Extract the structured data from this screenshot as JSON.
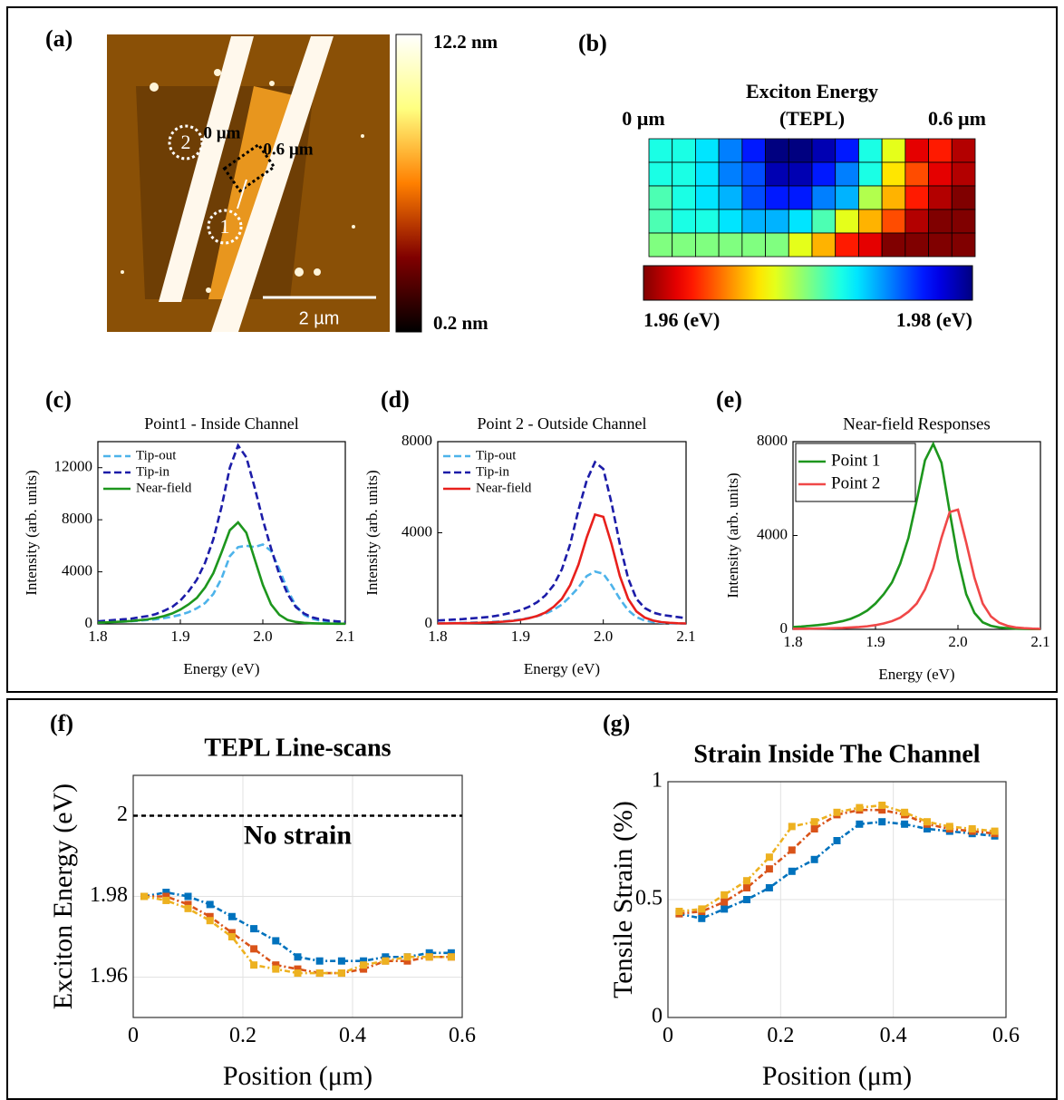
{
  "chart_data": [
    {
      "type": "image",
      "panel": "(a)",
      "colormap": "afmhot",
      "clim": [
        0.2,
        12.2
      ],
      "colorbar_ticks": [
        {
          "value": 12.2,
          "label": "12.2 nm"
        },
        {
          "value": 0.2,
          "label": "0.2 nm"
        }
      ],
      "scale_bar": "2 µm",
      "annotations": [
        "0 µm",
        "0.6 µm",
        "1",
        "2"
      ]
    },
    {
      "type": "heatmap",
      "panel": "(b)",
      "title": "Exciton Energy",
      "subtitle": "(TEPL)",
      "colormap": "jet_r",
      "xlim": [
        0,
        0.6
      ],
      "xticks": [
        {
          "value": 0,
          "label": "0 µm"
        },
        {
          "value": 0.6,
          "label": "0.6 µm"
        }
      ],
      "clim": [
        1.96,
        1.98
      ],
      "colorbar_ticks": [
        {
          "value": 1.96,
          "label": "1.96 (eV)"
        },
        {
          "value": 1.98,
          "label": "1.98 (eV)"
        }
      ],
      "values": [
        [
          1.972,
          1.972,
          1.973,
          1.975,
          1.977,
          1.98,
          1.98,
          1.979,
          1.977,
          1.972,
          1.968,
          1.962,
          1.963,
          1.961
        ],
        [
          1.972,
          1.972,
          1.973,
          1.975,
          1.976,
          1.979,
          1.979,
          1.977,
          1.975,
          1.972,
          1.967,
          1.964,
          1.962,
          1.961
        ],
        [
          1.971,
          1.972,
          1.973,
          1.974,
          1.976,
          1.977,
          1.977,
          1.975,
          1.974,
          1.969,
          1.966,
          1.963,
          1.961,
          1.96
        ],
        [
          1.971,
          1.972,
          1.972,
          1.973,
          1.974,
          1.974,
          1.973,
          1.971,
          1.968,
          1.966,
          1.964,
          1.961,
          1.96,
          1.96
        ],
        [
          1.97,
          1.97,
          1.97,
          1.97,
          1.97,
          1.97,
          1.968,
          1.966,
          1.963,
          1.962,
          1.96,
          1.96,
          1.96,
          1.96
        ]
      ]
    },
    {
      "type": "line",
      "panel": "(c)",
      "title": "Point1 - Inside Channel",
      "x_label": "Energy (eV)",
      "y_label": "Intensity (arb. units)",
      "xlim": [
        1.8,
        2.1
      ],
      "xticks": [
        1.8,
        1.9,
        {
          "value": 2,
          "label": "2.0"
        },
        2.1
      ],
      "ylim": [
        0,
        14000
      ],
      "yticks": [
        0,
        4000,
        8000,
        12000
      ],
      "grid": false,
      "legend": "upper left",
      "x": [
        1.8,
        1.81,
        1.82,
        1.83,
        1.84,
        1.85,
        1.86,
        1.87,
        1.88,
        1.89,
        1.9,
        1.91,
        1.92,
        1.93,
        1.94,
        1.95,
        1.96,
        1.97,
        1.98,
        1.99,
        2.0,
        2.01,
        2.02,
        2.03,
        2.04,
        2.05,
        2.06,
        2.07,
        2.08,
        2.09,
        2.1
      ],
      "series": [
        {
          "name": "Tip-out",
          "color": "#4db3ea",
          "style": "dashed",
          "values": [
            100,
            120,
            150,
            180,
            200,
            250,
            300,
            350,
            450,
            550,
            700,
            900,
            1200,
            1600,
            2300,
            3500,
            5200,
            5900,
            6000,
            5900,
            6100,
            5600,
            4200,
            2600,
            1400,
            700,
            400,
            250,
            150,
            100,
            80
          ]
        },
        {
          "name": "Tip-in",
          "color": "#1c1ca8",
          "style": "dashed",
          "values": [
            200,
            250,
            300,
            350,
            400,
            500,
            600,
            750,
            1000,
            1300,
            1800,
            2500,
            3400,
            4700,
            6500,
            9000,
            12000,
            13700,
            12800,
            10500,
            8000,
            5800,
            3800,
            2300,
            1300,
            800,
            500,
            350,
            250,
            200,
            150
          ]
        },
        {
          "name": "Near-field",
          "color": "#1d961d",
          "style": "solid",
          "values": [
            100,
            120,
            150,
            180,
            220,
            280,
            350,
            450,
            600,
            800,
            1100,
            1500,
            2000,
            2800,
            3900,
            5500,
            7200,
            7800,
            7000,
            5000,
            3000,
            1500,
            700,
            300,
            150,
            80,
            50,
            30,
            20,
            10,
            10
          ]
        }
      ]
    },
    {
      "type": "line",
      "panel": "(d)",
      "title": "Point 2 - Outside Channel",
      "x_label": "Energy (eV)",
      "y_label": "Intensity (arb. units)",
      "xlim": [
        1.8,
        2.1
      ],
      "xticks": [
        1.8,
        1.9,
        {
          "value": 2,
          "label": "2.0"
        },
        2.1
      ],
      "ylim": [
        0,
        8000
      ],
      "yticks": [
        0,
        4000,
        8000
      ],
      "grid": false,
      "legend": "upper left",
      "x": [
        1.8,
        1.81,
        1.82,
        1.83,
        1.84,
        1.85,
        1.86,
        1.87,
        1.88,
        1.89,
        1.9,
        1.91,
        1.92,
        1.93,
        1.94,
        1.95,
        1.96,
        1.97,
        1.98,
        1.99,
        2.0,
        2.01,
        2.02,
        2.03,
        2.04,
        2.05,
        2.06,
        2.07,
        2.08,
        2.09,
        2.1
      ],
      "series": [
        {
          "name": "Tip-out",
          "color": "#4db3ea",
          "style": "dashed",
          "values": [
            30,
            35,
            40,
            50,
            60,
            70,
            80,
            100,
            120,
            150,
            200,
            260,
            340,
            450,
            620,
            850,
            1200,
            1600,
            2100,
            2300,
            2200,
            1700,
            1100,
            600,
            300,
            150,
            80,
            50,
            30,
            20,
            15
          ]
        },
        {
          "name": "Tip-in",
          "color": "#1c1ca8",
          "style": "dashed",
          "values": [
            150,
            170,
            190,
            210,
            240,
            270,
            300,
            350,
            420,
            500,
            600,
            750,
            950,
            1250,
            1700,
            2400,
            3500,
            5000,
            6300,
            7100,
            6800,
            5300,
            3500,
            2000,
            1100,
            700,
            500,
            400,
            350,
            300,
            250
          ]
        },
        {
          "name": "Near-field",
          "color": "#e8201c",
          "style": "solid",
          "values": [
            20,
            25,
            30,
            35,
            40,
            50,
            60,
            80,
            100,
            130,
            180,
            250,
            350,
            500,
            750,
            1100,
            1700,
            2600,
            3800,
            4800,
            4700,
            3500,
            2100,
            1100,
            550,
            280,
            150,
            80,
            50,
            30,
            20
          ]
        }
      ]
    },
    {
      "type": "line",
      "panel": "(e)",
      "title": "Near-field Responses",
      "x_label": "Energy (eV)",
      "y_label": "Intensity (arb. units)",
      "xlim": [
        1.8,
        2.1
      ],
      "xticks": [
        1.8,
        1.9,
        {
          "value": 2,
          "label": "2.0"
        },
        2.1
      ],
      "ylim": [
        0,
        8000
      ],
      "yticks": [
        0,
        4000,
        8000
      ],
      "grid": false,
      "legend": "upper left",
      "x": [
        1.8,
        1.81,
        1.82,
        1.83,
        1.84,
        1.85,
        1.86,
        1.87,
        1.88,
        1.89,
        1.9,
        1.91,
        1.92,
        1.93,
        1.94,
        1.95,
        1.96,
        1.97,
        1.98,
        1.99,
        2.0,
        2.01,
        2.02,
        2.03,
        2.04,
        2.05,
        2.06,
        2.07,
        2.08,
        2.09,
        2.1
      ],
      "series": [
        {
          "name": "Point 1",
          "color": "#1d961d",
          "style": "solid",
          "values": [
            100,
            120,
            150,
            180,
            220,
            280,
            350,
            450,
            600,
            800,
            1100,
            1500,
            2000,
            2800,
            3900,
            5500,
            7200,
            7900,
            7100,
            5000,
            3000,
            1500,
            700,
            300,
            150,
            80,
            50,
            30,
            20,
            10,
            10
          ]
        },
        {
          "name": "Point 2",
          "color": "#f04848",
          "style": "solid",
          "values": [
            20,
            25,
            30,
            35,
            40,
            50,
            60,
            80,
            100,
            130,
            180,
            250,
            350,
            500,
            750,
            1100,
            1700,
            2600,
            3900,
            5000,
            5100,
            3700,
            2200,
            1100,
            550,
            280,
            150,
            80,
            50,
            30,
            20
          ]
        }
      ]
    },
    {
      "type": "line",
      "panel": "(f)",
      "title": "TEPL Line-scans",
      "x_label": "Position (μm)",
      "y_label": "Exciton Energy (eV)",
      "xlim": [
        0,
        0.6
      ],
      "xticks": [
        0,
        0.2,
        0.4,
        0.6
      ],
      "ylim": [
        1.95,
        2.01
      ],
      "yticks": [
        1.96,
        1.98,
        2
      ],
      "grid": true,
      "reference": {
        "value": 2,
        "label": "No strain"
      },
      "x": [
        0.02,
        0.06,
        0.1,
        0.14,
        0.18,
        0.22,
        0.26,
        0.3,
        0.34,
        0.38,
        0.42,
        0.46,
        0.5,
        0.54,
        0.58
      ],
      "series": [
        {
          "color": "#0072bd",
          "style": "dashdot",
          "marker": "square",
          "values": [
            1.98,
            1.981,
            1.98,
            1.978,
            1.975,
            1.972,
            1.969,
            1.965,
            1.964,
            1.964,
            1.964,
            1.965,
            1.965,
            1.966,
            1.966
          ]
        },
        {
          "color": "#d95319",
          "style": "dashdot",
          "marker": "square",
          "values": [
            1.98,
            1.98,
            1.978,
            1.975,
            1.971,
            1.967,
            1.963,
            1.962,
            1.961,
            1.961,
            1.962,
            1.964,
            1.964,
            1.965,
            1.965
          ]
        },
        {
          "color": "#edb120",
          "style": "dashdot",
          "marker": "square",
          "values": [
            1.98,
            1.979,
            1.977,
            1.974,
            1.97,
            1.963,
            1.962,
            1.961,
            1.961,
            1.961,
            1.963,
            1.964,
            1.965,
            1.965,
            1.965
          ]
        }
      ]
    },
    {
      "type": "line",
      "panel": "(g)",
      "title": "Strain Inside The Channel",
      "x_label": "Position (μm)",
      "y_label": "Tensile Strain (%)",
      "xlim": [
        0,
        0.6
      ],
      "xticks": [
        0,
        0.2,
        0.4,
        0.6
      ],
      "ylim": [
        0,
        1
      ],
      "yticks": [
        0,
        0.5,
        1
      ],
      "grid": true,
      "x": [
        0.02,
        0.06,
        0.1,
        0.14,
        0.18,
        0.22,
        0.26,
        0.3,
        0.34,
        0.38,
        0.42,
        0.46,
        0.5,
        0.54,
        0.58
      ],
      "series": [
        {
          "color": "#0072bd",
          "style": "dashdot",
          "marker": "square",
          "values": [
            0.44,
            0.42,
            0.46,
            0.5,
            0.55,
            0.62,
            0.67,
            0.75,
            0.82,
            0.83,
            0.82,
            0.8,
            0.79,
            0.78,
            0.77
          ]
        },
        {
          "color": "#d95319",
          "style": "dashdot",
          "marker": "square",
          "values": [
            0.44,
            0.45,
            0.49,
            0.55,
            0.63,
            0.71,
            0.8,
            0.86,
            0.88,
            0.88,
            0.86,
            0.82,
            0.8,
            0.79,
            0.78
          ]
        },
        {
          "color": "#edb120",
          "style": "dashdot",
          "marker": "square",
          "values": [
            0.45,
            0.46,
            0.52,
            0.58,
            0.68,
            0.81,
            0.83,
            0.87,
            0.89,
            0.9,
            0.87,
            0.83,
            0.81,
            0.8,
            0.79
          ]
        }
      ]
    }
  ]
}
